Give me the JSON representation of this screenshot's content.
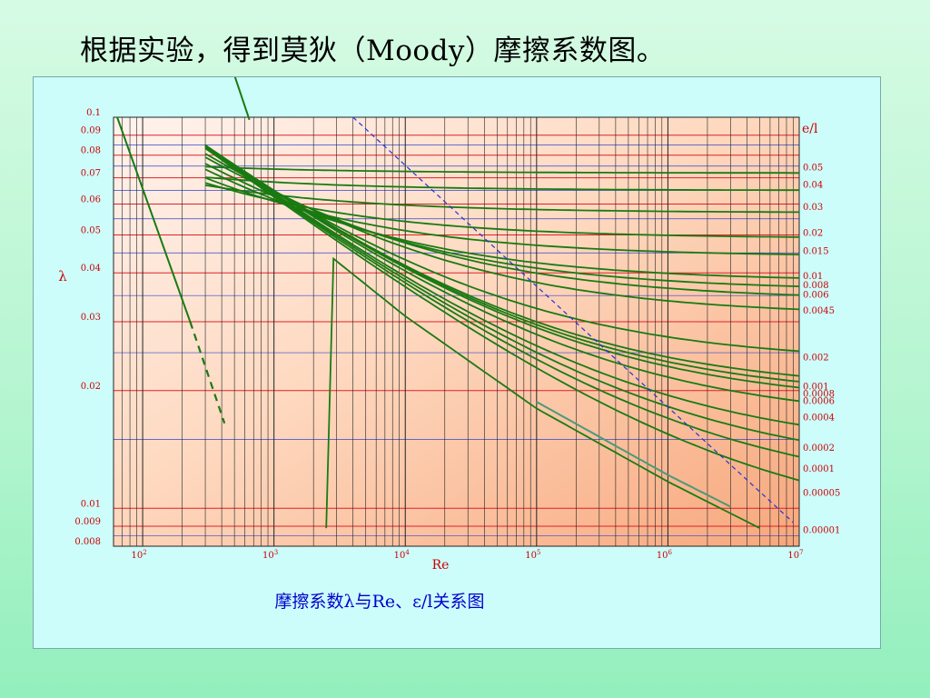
{
  "slide": {
    "title": "根据实验，得到莫狄（Moody）摩擦系数图。",
    "caption": "摩擦系数λ与Re、ε/l关系图"
  },
  "colors": {
    "background": "#b3f5cf",
    "frame": "#ccfdfb",
    "curve": "#1a7a12",
    "highlight_curve": "#4a9a7a",
    "dashed_boundary": "#2233dd",
    "major_grid": "#e0202a",
    "minor_grid": "#3344cc",
    "label": "#cc0000"
  },
  "chart_data": {
    "type": "line",
    "xscale": "log",
    "yscale": "log",
    "xlabel": "Re",
    "ylabel": "λ",
    "right_label": "e/l",
    "xlim": [
      60,
      10000000
    ],
    "ylim": [
      0.008,
      0.1
    ],
    "x_ticks": [
      {
        "value": 100,
        "base": "10",
        "exp": "2"
      },
      {
        "value": 1000,
        "base": "10",
        "exp": "3"
      },
      {
        "value": 10000,
        "base": "10",
        "exp": "4"
      },
      {
        "value": 100000,
        "base": "10",
        "exp": "5"
      },
      {
        "value": 1000000,
        "base": "10",
        "exp": "6"
      },
      {
        "value": 10000000,
        "base": "10",
        "exp": "7"
      }
    ],
    "y_ticks": [
      "0.1",
      "0.09",
      "0.08",
      "0.07",
      "0.06",
      "0.05",
      "0.04",
      "0.03",
      "0.02",
      "0.01",
      "0.009",
      "0.008"
    ],
    "laminar": {
      "points": [
        [
          64,
          0.1
        ],
        [
          800,
          0.08
        ]
      ],
      "solid_until": 2300
    },
    "smooth_pipe": [
      [
        2500,
        0.045
      ],
      [
        10000,
        0.031
      ],
      [
        100000,
        0.018
      ],
      [
        1000000,
        0.0117
      ],
      [
        5000000,
        0.0089
      ]
    ],
    "series": [
      {
        "name": "0.05",
        "lambda": 0.072,
        "start": 3000
      },
      {
        "name": "0.04",
        "lambda": 0.065,
        "start": 3000
      },
      {
        "name": "0.03",
        "lambda": 0.057,
        "start": 3000
      },
      {
        "name": "0.02",
        "lambda": 0.049,
        "start": 3000
      },
      {
        "name": "0.015",
        "lambda": 0.044,
        "start": 3000
      },
      {
        "name": "0.01",
        "lambda": 0.038,
        "start": 3000
      },
      {
        "name": "0.008",
        "lambda": 0.036,
        "start": 3000
      },
      {
        "name": "0.006",
        "lambda": 0.034,
        "start": 3000
      },
      {
        "name": "0.0045",
        "lambda": 0.031,
        "start": 3000
      },
      {
        "name": "0.002",
        "lambda": 0.0235,
        "start": 3000
      },
      {
        "name": "0.001",
        "lambda": 0.0198,
        "start": 3000
      },
      {
        "name": "0.0008",
        "lambda": 0.019,
        "start": 3000
      },
      {
        "name": "0.0006",
        "lambda": 0.0182,
        "start": 3000
      },
      {
        "name": "0.0004",
        "lambda": 0.0165,
        "start": 3000
      },
      {
        "name": "0.0002",
        "lambda": 0.0138,
        "start": 3000
      },
      {
        "name": "0.0001",
        "lambda": 0.0122,
        "start": 4000
      },
      {
        "name": "0.00005",
        "lambda": 0.0106,
        "start": 5000
      },
      {
        "name": "0.00001",
        "lambda": 0.0085,
        "start": 8000
      }
    ]
  }
}
